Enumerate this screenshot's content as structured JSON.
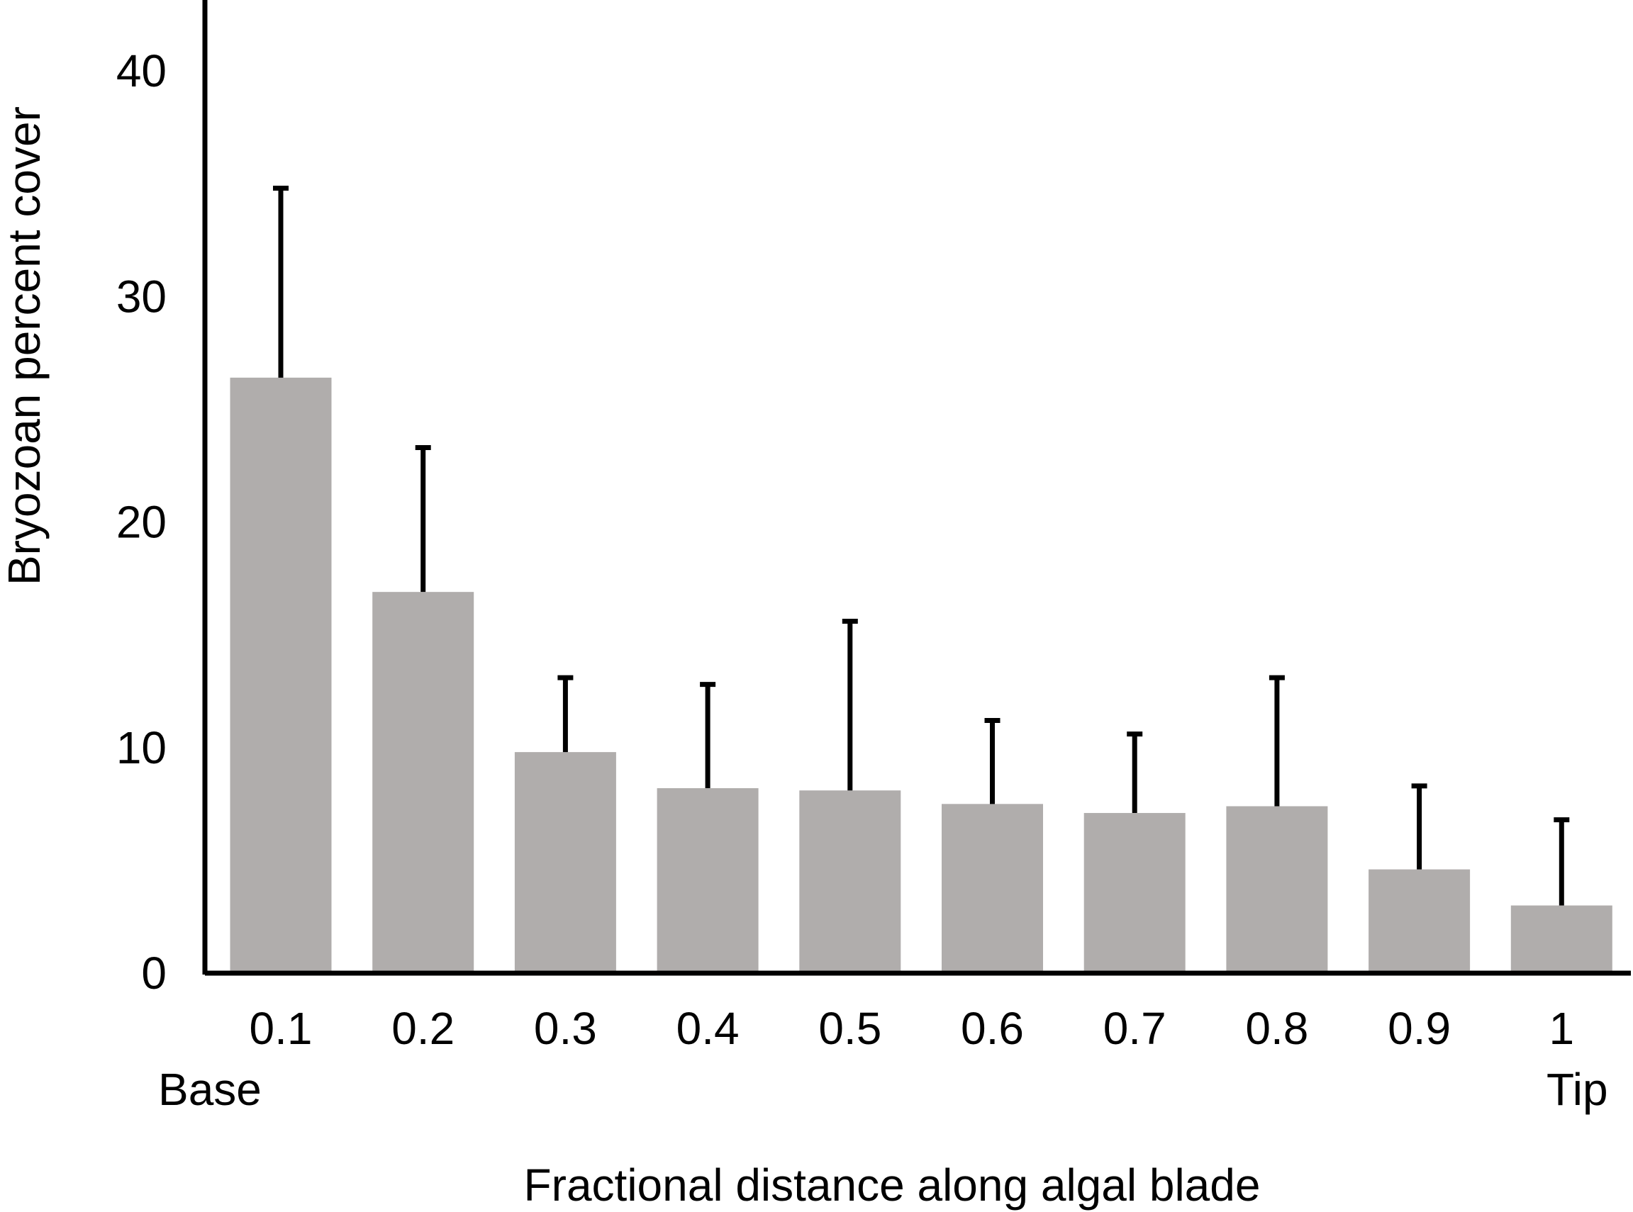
{
  "chart_data": {
    "type": "bar",
    "categories": [
      "0.1",
      "0.2",
      "0.3",
      "0.4",
      "0.5",
      "0.6",
      "0.7",
      "0.8",
      "0.9",
      "1"
    ],
    "values": [
      26.4,
      16.9,
      9.8,
      8.2,
      8.1,
      7.5,
      7.1,
      7.4,
      4.6,
      3.0
    ],
    "error_upper": [
      34.8,
      23.3,
      13.1,
      12.8,
      15.6,
      11.2,
      10.6,
      13.1,
      8.3,
      6.8
    ],
    "xlabel": "Fractional distance along algal blade",
    "ylabel": "Bryozoan percent cover",
    "ylim": [
      0,
      40
    ],
    "yticks": [
      0,
      10,
      20,
      30,
      40
    ],
    "x_start_label": "Base",
    "x_end_label": "Tip",
    "bar_color": "#b0adac",
    "grid": false,
    "legend": "none"
  }
}
